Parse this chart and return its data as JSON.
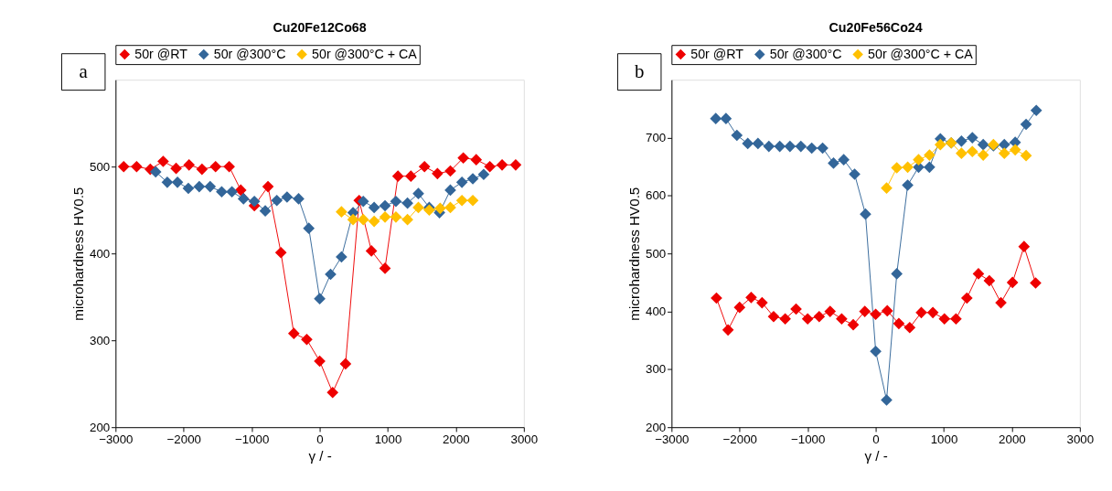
{
  "chart_data": [
    {
      "type": "line",
      "title": "Cu20Fe12Co68",
      "xlabel": "γ / -",
      "ylabel": "microhardness HV0.5",
      "annotations": [
        "a"
      ],
      "xlim": [
        -3000,
        3000
      ],
      "xticks": [
        -3000,
        -2000,
        -1000,
        0,
        1000,
        2000,
        3000
      ],
      "ylim": [
        200,
        600
      ],
      "yticks": [
        200,
        300,
        400,
        500
      ],
      "grid": false,
      "legend": "top",
      "marker": "diamond",
      "line_style": "solid",
      "series": [
        {
          "name": "50r @RT",
          "color": "#ee0000",
          "x": [
            -2880,
            -2690,
            -2490,
            -2300,
            -2110,
            -1920,
            -1730,
            -1530,
            -1330,
            -1160,
            -960,
            -760,
            -570,
            -380,
            -190,
            0,
            190,
            380,
            580,
            760,
            960,
            1150,
            1340,
            1540,
            1730,
            1920,
            2110,
            2300,
            2500,
            2680,
            2880
          ],
          "values": [
            500,
            500,
            497,
            506,
            498,
            502,
            497,
            500,
            500,
            473,
            455,
            477,
            401,
            308,
            301,
            276,
            240,
            273,
            461,
            403,
            383,
            489,
            489,
            500,
            492,
            495,
            510,
            508,
            500,
            502,
            502
          ]
        },
        {
          "name": "50r @300°C",
          "color": "#336699",
          "x": [
            -2410,
            -2240,
            -2090,
            -1930,
            -1770,
            -1610,
            -1440,
            -1290,
            -1120,
            -960,
            -800,
            -630,
            -480,
            -310,
            -160,
            0,
            160,
            320,
            490,
            640,
            800,
            960,
            1120,
            1290,
            1450,
            1610,
            1760,
            1920,
            2090,
            2250,
            2410
          ],
          "values": [
            494,
            482,
            482,
            475,
            477,
            477,
            471,
            471,
            463,
            460,
            449,
            461,
            465,
            463,
            429,
            348,
            376,
            396,
            447,
            460,
            453,
            455,
            460,
            458,
            469,
            453,
            447,
            473,
            482,
            486,
            491
          ]
        },
        {
          "name": "50r @300°C + CA",
          "color": "#ffc000",
          "x": [
            320,
            490,
            640,
            800,
            960,
            1120,
            1290,
            1450,
            1610,
            1770,
            1920,
            2090,
            2250
          ],
          "values": [
            448,
            439,
            439,
            437,
            442,
            442,
            439,
            453,
            450,
            452,
            453,
            461,
            461
          ]
        }
      ]
    },
    {
      "type": "line",
      "title": "Cu20Fe56Co24",
      "xlabel": "γ / -",
      "ylabel": "microhardness HV0.5",
      "annotations": [
        "b"
      ],
      "xlim": [
        -3000,
        3000
      ],
      "xticks": [
        -3000,
        -2000,
        -1000,
        0,
        1000,
        2000,
        3000
      ],
      "ylim": [
        200,
        800
      ],
      "yticks": [
        200,
        300,
        400,
        500,
        600,
        700
      ],
      "grid": false,
      "legend": "top",
      "marker": "diamond",
      "line_style": "solid",
      "series": [
        {
          "name": "50r @RT",
          "color": "#ee0000",
          "x": [
            -2340,
            -2170,
            -2000,
            -1830,
            -1670,
            -1500,
            -1330,
            -1170,
            -1000,
            -830,
            -670,
            -500,
            -330,
            -160,
            0,
            170,
            340,
            500,
            670,
            840,
            1010,
            1180,
            1340,
            1510,
            1670,
            1840,
            2010,
            2180,
            2350
          ],
          "values": [
            423,
            368,
            407,
            424,
            415,
            391,
            387,
            404,
            387,
            391,
            400,
            387,
            377,
            400,
            395,
            401,
            379,
            372,
            398,
            398,
            387,
            387,
            423,
            465,
            453,
            415,
            450,
            512,
            449
          ]
        },
        {
          "name": "50r @300°C",
          "color": "#336699",
          "x": [
            -2350,
            -2200,
            -2040,
            -1880,
            -1730,
            -1570,
            -1410,
            -1260,
            -1100,
            -940,
            -780,
            -620,
            -470,
            -310,
            -150,
            0,
            160,
            310,
            470,
            630,
            790,
            950,
            1110,
            1260,
            1420,
            1580,
            1730,
            1890,
            2050,
            2210,
            2360
          ],
          "values": [
            733,
            733,
            704,
            690,
            690,
            685,
            685,
            685,
            685,
            682,
            682,
            656,
            662,
            637,
            568,
            331,
            247,
            465,
            618,
            649,
            649,
            698,
            691,
            694,
            700,
            688,
            686,
            688,
            692,
            723,
            747
          ]
        },
        {
          "name": "50r @300°C + CA",
          "color": "#ffc000",
          "x": [
            160,
            310,
            470,
            630,
            790,
            950,
            1110,
            1260,
            1420,
            1580,
            1730,
            1890,
            2050,
            2210
          ],
          "values": [
            613,
            648,
            649,
            662,
            670,
            688,
            691,
            673,
            676,
            670,
            688,
            673,
            679,
            669
          ]
        }
      ]
    }
  ]
}
